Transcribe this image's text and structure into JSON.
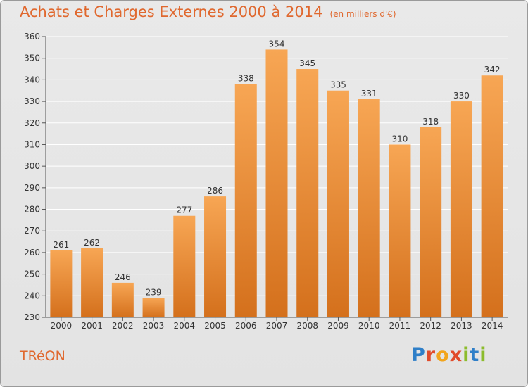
{
  "title": "Achats et Charges Externes 2000 à 2014",
  "subtitle": "(en milliers d'€)",
  "commune": "TRéON",
  "brand": {
    "name": "Proxiti",
    "colors": [
      "#2f7fc8",
      "#e14b2a",
      "#f2a51c",
      "#e14b2a",
      "#8cbc2c",
      "#2f7fc8",
      "#8cbc2c"
    ]
  },
  "colors": {
    "accent": "#e0682e",
    "bar_top": "#f7a654",
    "bar_bottom": "#d4701c",
    "grid": "#ffffff",
    "axis": "#555555"
  },
  "chart_data": {
    "type": "bar",
    "categories": [
      "2000",
      "2001",
      "2002",
      "2003",
      "2004",
      "2005",
      "2006",
      "2007",
      "2008",
      "2009",
      "2010",
      "2011",
      "2012",
      "2013",
      "2014"
    ],
    "values": [
      261,
      262,
      246,
      239,
      277,
      286,
      338,
      354,
      345,
      335,
      331,
      310,
      318,
      330,
      342
    ],
    "ylim": [
      230,
      360
    ],
    "yticks": [
      230,
      240,
      250,
      260,
      270,
      280,
      290,
      300,
      310,
      320,
      330,
      340,
      350,
      360
    ],
    "grid": true,
    "data_labels": true
  }
}
